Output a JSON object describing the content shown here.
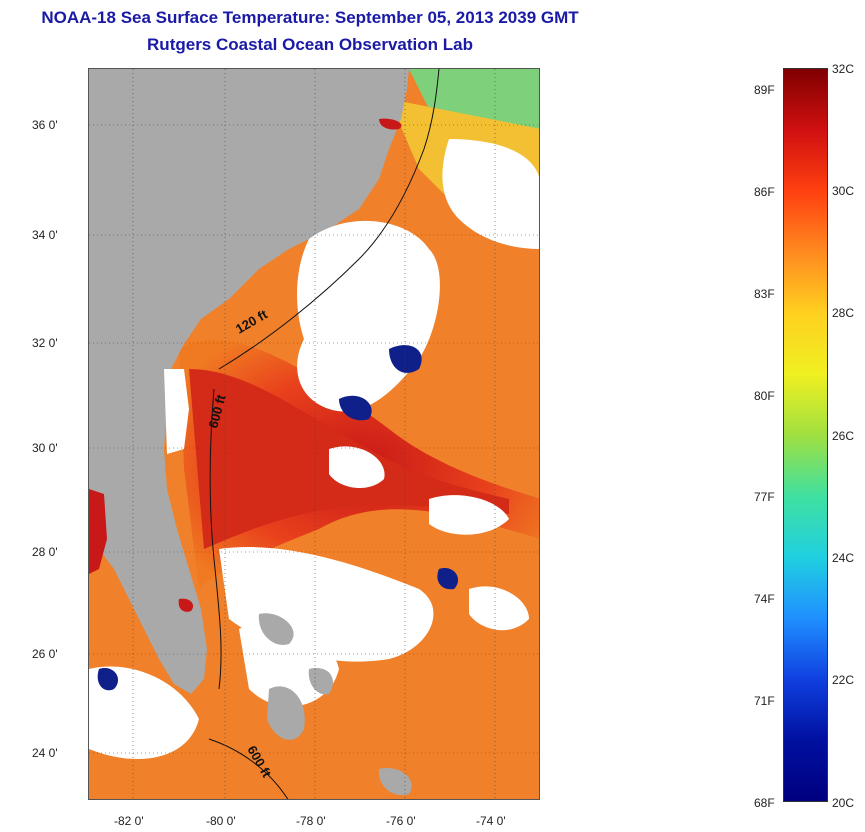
{
  "header": {
    "title": "NOAA-18 Sea Surface Temperature:  September 05, 2013 2039 GMT",
    "subtitle": "Rutgers Coastal Ocean Observation Lab"
  },
  "map": {
    "lat_ticks": [
      "36 0'",
      "34 0'",
      "32 0'",
      "30 0'",
      "28 0'",
      "26 0'",
      "24 0'"
    ],
    "lon_ticks": [
      "-82 0'",
      "-80 0'",
      "-78 0'",
      "-76 0'",
      "-74 0'"
    ],
    "isobath_labels": [
      "120 ft",
      "600 ft",
      "600 ft"
    ],
    "colors": {
      "land": "#a9a9a9",
      "cloud": "#ffffff",
      "gulf_stream": "#e0301a",
      "warm": "#f07a22",
      "cool_patch": "#10208a",
      "contour": "#111111"
    }
  },
  "colorbar": {
    "fahrenheit_labels": [
      "89F",
      "86F",
      "83F",
      "80F",
      "77F",
      "74F",
      "71F",
      "68F"
    ],
    "celsius_labels": [
      "32C",
      "30C",
      "28C",
      "26C",
      "24C",
      "22C",
      "20C"
    ],
    "range_c": [
      20,
      32
    ],
    "gradient": [
      "#800000",
      "#d01010",
      "#ff4010",
      "#ff8a20",
      "#ffd020",
      "#f0f020",
      "#a0e040",
      "#40e0a0",
      "#20d0e0",
      "#2090ff",
      "#1040e0",
      "#0010a0",
      "#000080"
    ]
  }
}
